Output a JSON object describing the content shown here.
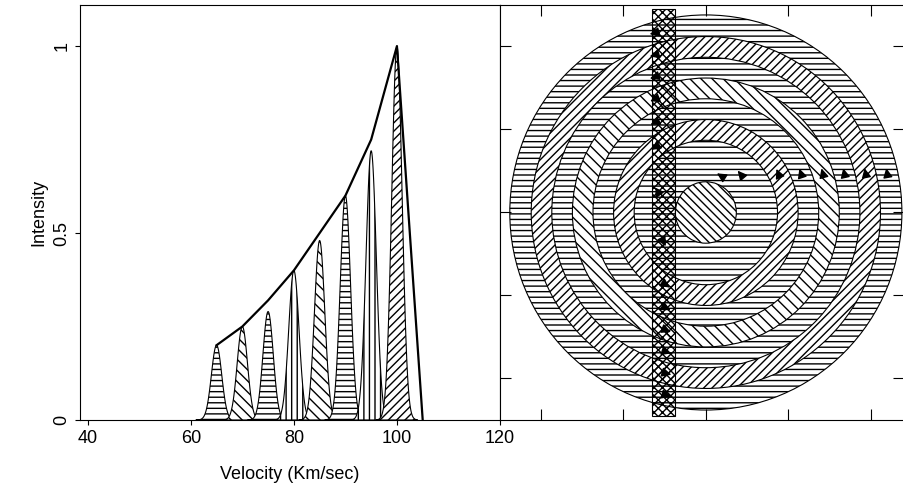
{
  "chart_data": [
    {
      "type": "line",
      "x_label": "Velocity (Km/sec)",
      "y_label": "Intensity",
      "xlim": [
        38.5,
        120
      ],
      "ylim": [
        0,
        1.11
      ],
      "xticks": [
        40,
        60,
        80,
        100,
        120
      ],
      "yticks": [
        0,
        0.5,
        1
      ],
      "color": "#000000",
      "series": [
        {
          "type": "line",
          "color": "#000000",
          "x": [
            65,
            70,
            75,
            80,
            85,
            90,
            95,
            100,
            105
          ],
          "values": [
            0.2,
            0.25,
            0.32,
            0.4,
            0.5,
            0.6,
            0.75,
            1.0,
            0.0
          ]
        },
        {
          "type": "peaks",
          "color": "#000000",
          "x": [
            65,
            70,
            75,
            80,
            85,
            90,
            95,
            100
          ],
          "values": [
            0.2,
            0.25,
            0.29,
            0.4,
            0.48,
            0.6,
            0.72,
            1.0
          ],
          "width": 1.0
        }
      ]
    },
    {
      "type": "rings",
      "xlim": [
        -2.5,
        2.4
      ],
      "ylim": [
        -2.5,
        2.5
      ],
      "xticks": [
        -2,
        -1,
        0,
        1,
        2
      ],
      "yticks": [
        -2,
        -1,
        0,
        1,
        2
      ],
      "tick_labels": false,
      "color": "#000000"
    }
  ]
}
